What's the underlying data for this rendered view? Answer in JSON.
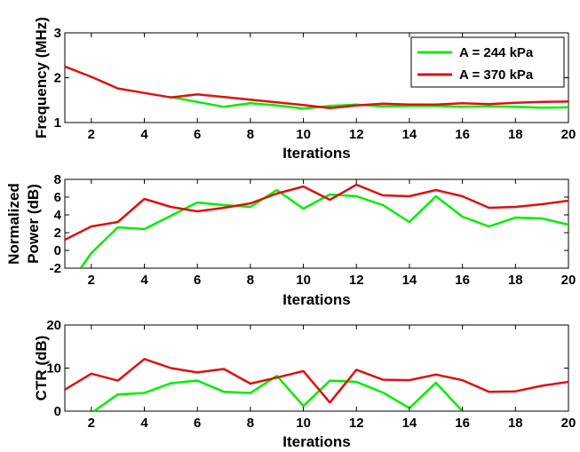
{
  "chart_data": [
    {
      "type": "line",
      "id": "frequency",
      "xlabel": "Iterations",
      "ylabel": "Frequency (MHz)",
      "xlim": [
        1,
        20
      ],
      "ylim": [
        1,
        3
      ],
      "xticks": [
        2,
        4,
        6,
        8,
        10,
        12,
        14,
        16,
        18,
        20
      ],
      "yticks": [
        1,
        2,
        3
      ],
      "legend": {
        "placement": "top-right"
      },
      "series": [
        {
          "name": "A = 244 kPa",
          "color": "#00ee00",
          "x": [
            5,
            6,
            7,
            8,
            9,
            10,
            11,
            12,
            13,
            14,
            15,
            16,
            17,
            18,
            19,
            20
          ],
          "y": [
            1.57,
            1.46,
            1.35,
            1.43,
            1.38,
            1.31,
            1.37,
            1.4,
            1.36,
            1.37,
            1.37,
            1.35,
            1.36,
            1.35,
            1.33,
            1.34
          ]
        },
        {
          "name": "A = 370 kPa",
          "color": "#dd1111",
          "x": [
            1,
            2,
            3,
            4,
            5,
            6,
            7,
            8,
            9,
            10,
            11,
            12,
            13,
            14,
            15,
            16,
            17,
            18,
            19,
            20
          ],
          "y": [
            2.25,
            2.02,
            1.76,
            1.66,
            1.56,
            1.63,
            1.57,
            1.51,
            1.45,
            1.39,
            1.32,
            1.38,
            1.42,
            1.4,
            1.4,
            1.43,
            1.41,
            1.44,
            1.46,
            1.47
          ]
        }
      ]
    },
    {
      "type": "line",
      "id": "power",
      "xlabel": "Iterations",
      "ylabel_lines": [
        "Normalized",
        "Power (dB)"
      ],
      "xlim": [
        1,
        20
      ],
      "ylim": [
        -2,
        8
      ],
      "xticks": [
        2,
        4,
        6,
        8,
        10,
        12,
        14,
        16,
        18,
        20
      ],
      "yticks": [
        -2,
        0,
        2,
        4,
        6,
        8
      ],
      "series": [
        {
          "name": "A = 244 kPa",
          "color": "#00ee00",
          "x": [
            1.6,
            2,
            3,
            4,
            5,
            6,
            7,
            8,
            9,
            10,
            11,
            12,
            13,
            14,
            15,
            16,
            17,
            18,
            19,
            20
          ],
          "y": [
            -2,
            -0.3,
            2.6,
            2.4,
            3.9,
            5.4,
            5.1,
            4.9,
            6.8,
            4.7,
            6.3,
            6.1,
            5.1,
            3.2,
            6.1,
            3.8,
            2.7,
            3.7,
            3.6,
            2.9
          ]
        },
        {
          "name": "A = 370 kPa",
          "color": "#dd1111",
          "x": [
            1,
            2,
            3,
            4,
            5,
            6,
            7,
            8,
            9,
            10,
            11,
            12,
            13,
            14,
            15,
            16,
            17,
            18,
            19,
            20
          ],
          "y": [
            1.2,
            2.7,
            3.2,
            5.8,
            4.9,
            4.4,
            4.8,
            5.3,
            6.4,
            7.2,
            5.7,
            7.4,
            6.2,
            6.1,
            6.8,
            6.1,
            4.8,
            4.9,
            5.2,
            5.6
          ]
        }
      ]
    },
    {
      "type": "line",
      "id": "ctr",
      "xlabel": "Iterations",
      "ylabel": "CTR (dB)",
      "xlim": [
        1,
        20
      ],
      "ylim": [
        0,
        20
      ],
      "xticks": [
        2,
        4,
        6,
        8,
        10,
        12,
        14,
        16,
        18,
        20
      ],
      "yticks": [
        0,
        10,
        20
      ],
      "series": [
        {
          "name": "A = 244 kPa",
          "color": "#00ee00",
          "x": [
            2.1,
            3,
            4,
            5,
            6,
            7,
            8,
            9,
            10,
            11,
            12,
            13,
            14,
            15,
            16
          ],
          "y": [
            0,
            3.9,
            4.2,
            6.5,
            7.1,
            4.5,
            4.2,
            8.2,
            1.2,
            7.1,
            6.8,
            4.3,
            0.7,
            6.6,
            0
          ]
        },
        {
          "name": "A = 370 kPa",
          "color": "#dd1111",
          "x": [
            1,
            2,
            3,
            4,
            5,
            6,
            7,
            8,
            9,
            10,
            11,
            12,
            13,
            14,
            15,
            16,
            17,
            18,
            19,
            20
          ],
          "y": [
            5.0,
            8.7,
            7.1,
            12.1,
            10.0,
            9.0,
            9.8,
            6.4,
            7.8,
            9.3,
            2.0,
            9.6,
            7.3,
            7.2,
            8.5,
            7.2,
            4.5,
            4.6,
            5.9,
            6.8
          ]
        }
      ]
    }
  ]
}
